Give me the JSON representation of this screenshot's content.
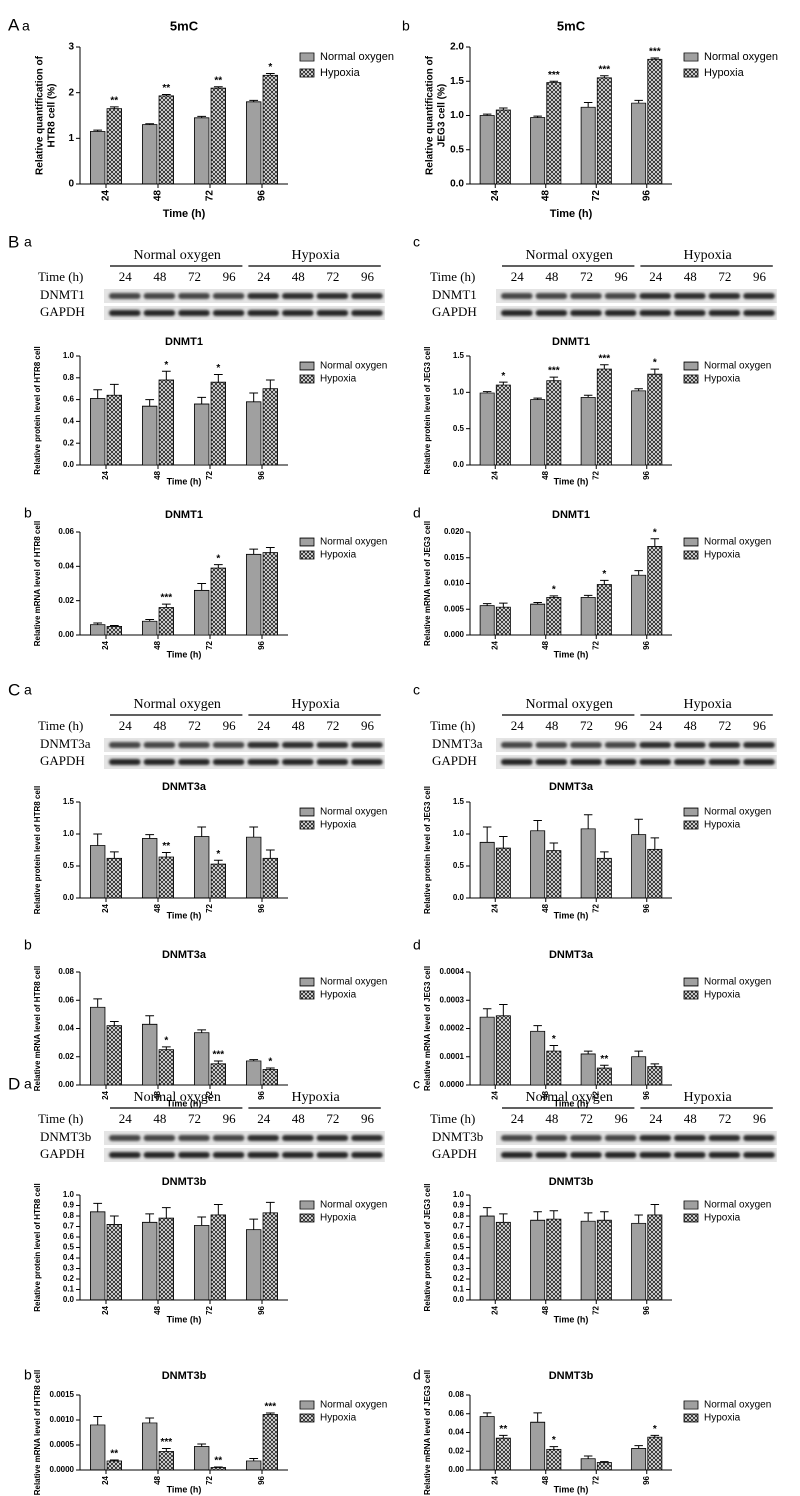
{
  "sections": [
    {
      "letter": "A",
      "panels": [
        "a",
        "b"
      ]
    },
    {
      "letter": "B",
      "panels": [
        "a",
        "c",
        "b",
        "d"
      ]
    },
    {
      "letter": "C",
      "panels": [
        "a",
        "c",
        "b",
        "d"
      ]
    },
    {
      "letter": "D",
      "panels": [
        "a",
        "c",
        "b",
        "d"
      ]
    }
  ],
  "blots": [
    {
      "groups": [
        "Normal oxygen",
        "Hypoxia"
      ],
      "time_label": "Time (h)",
      "times": [
        "24",
        "48",
        "72",
        "96",
        "24",
        "48",
        "72",
        "96"
      ],
      "rows": [
        "DNMT1",
        "GAPDH"
      ]
    },
    {
      "groups": [
        "Normal oxygen",
        "Hypoxia"
      ],
      "time_label": "Time (h)",
      "times": [
        "24",
        "48",
        "72",
        "96",
        "24",
        "48",
        "72",
        "96"
      ],
      "rows": [
        "DNMT1",
        "GAPDH"
      ]
    },
    {
      "groups": [
        "Normal oxygen",
        "Hypoxia"
      ],
      "time_label": "Time (h)",
      "times": [
        "24",
        "48",
        "72",
        "96",
        "24",
        "48",
        "72",
        "96"
      ],
      "rows": [
        "DNMT3a",
        "GAPDH"
      ]
    },
    {
      "groups": [
        "Normal oxygen",
        "Hypoxia"
      ],
      "time_label": "Time (h)",
      "times": [
        "24",
        "48",
        "72",
        "96",
        "24",
        "48",
        "72",
        "96"
      ],
      "rows": [
        "DNMT3a",
        "GAPDH"
      ]
    },
    {
      "groups": [
        "Normal oxygen",
        "Hypoxia"
      ],
      "time_label": "Time (h)",
      "times": [
        "24",
        "48",
        "72",
        "96",
        "24",
        "48",
        "72",
        "96"
      ],
      "rows": [
        "DNMT3b",
        "GAPDH"
      ]
    },
    {
      "groups": [
        "Normal oxygen",
        "Hypoxia"
      ],
      "time_label": "Time (h)",
      "times": [
        "24",
        "48",
        "72",
        "96",
        "24",
        "48",
        "72",
        "96"
      ],
      "rows": [
        "DNMT3b",
        "GAPDH"
      ]
    }
  ],
  "chart_data": [
    {
      "type": "bar",
      "title": "5mC",
      "ylabel": [
        "Relative quantification of",
        "HTR8 cell (%)"
      ],
      "xlabel": "Time (h)",
      "categories": [
        "24",
        "48",
        "72",
        "96"
      ],
      "ylim": [
        0,
        3
      ],
      "yticks": [
        0,
        1,
        2,
        3
      ],
      "series": [
        {
          "name": "Normal oxygen",
          "color": "#707070",
          "values": [
            1.15,
            1.3,
            1.45,
            1.8
          ],
          "errors": [
            0.03,
            0.02,
            0.03,
            0.03
          ]
        },
        {
          "name": "Hypoxia",
          "color": "#303030",
          "values": [
            1.65,
            1.93,
            2.1,
            2.38
          ],
          "errors": [
            0.04,
            0.03,
            0.03,
            0.04
          ]
        }
      ],
      "significance": [
        "**",
        "**",
        "**",
        "*"
      ]
    },
    {
      "type": "bar",
      "title": "5mC",
      "ylabel": [
        "Relative quantification of",
        "JEG3 cell (%)"
      ],
      "xlabel": "Time (h)",
      "categories": [
        "24",
        "48",
        "72",
        "96"
      ],
      "ylim": [
        0,
        2
      ],
      "yticks": [
        {
          "value": 0,
          "label": "0.0"
        },
        0.5,
        {
          "value": 1,
          "label": "1.0"
        },
        1.5,
        {
          "value": 2,
          "label": "2.0"
        }
      ],
      "series": [
        {
          "name": "Normal oxygen",
          "color": "#707070",
          "values": [
            1.0,
            0.97,
            1.12,
            1.18
          ],
          "errors": [
            0.02,
            0.02,
            0.07,
            0.04
          ]
        },
        {
          "name": "Hypoxia",
          "color": "#303030",
          "values": [
            1.08,
            1.48,
            1.55,
            1.82
          ],
          "errors": [
            0.03,
            0.02,
            0.03,
            0.02
          ]
        }
      ],
      "significance": [
        null,
        "***",
        "***",
        "***"
      ]
    },
    {
      "type": "bar",
      "title": "DNMT1",
      "ylabel": "Relative protein level of HTR8 cell",
      "xlabel": "Time (h)",
      "categories": [
        "24",
        "48",
        "72",
        "96"
      ],
      "ylim": [
        0,
        1
      ],
      "yticks": [
        {
          "value": 0,
          "label": "0.0"
        },
        0.2,
        0.4,
        0.6,
        0.8,
        {
          "value": 1,
          "label": "1.0"
        }
      ],
      "series": [
        {
          "name": "Normal oxygen",
          "color": "#707070",
          "values": [
            0.61,
            0.54,
            0.56,
            0.58
          ],
          "errors": [
            0.08,
            0.06,
            0.06,
            0.08
          ]
        },
        {
          "name": "Hypoxia",
          "color": "#303030",
          "values": [
            0.64,
            0.78,
            0.76,
            0.7
          ],
          "errors": [
            0.1,
            0.08,
            0.07,
            0.08
          ]
        }
      ],
      "significance": [
        null,
        "*",
        "*",
        null
      ]
    },
    {
      "type": "bar",
      "title": "DNMT1",
      "ylabel": "Relative protein level of JEG3 cell",
      "xlabel": "Time (h)",
      "categories": [
        "24",
        "48",
        "72",
        "96"
      ],
      "ylim": [
        0,
        1.5
      ],
      "yticks": [
        {
          "value": 0,
          "label": "0.0"
        },
        0.5,
        {
          "value": 1,
          "label": "1.0"
        },
        1.5
      ],
      "series": [
        {
          "name": "Normal oxygen",
          "color": "#707070",
          "values": [
            0.99,
            0.9,
            0.93,
            1.02
          ],
          "errors": [
            0.02,
            0.02,
            0.03,
            0.03
          ]
        },
        {
          "name": "Hypoxia",
          "color": "#303030",
          "values": [
            1.1,
            1.16,
            1.32,
            1.25
          ],
          "errors": [
            0.04,
            0.05,
            0.06,
            0.07
          ]
        }
      ],
      "significance": [
        "*",
        "***",
        "***",
        "*"
      ]
    },
    {
      "type": "bar",
      "title": "DNMT1",
      "ylabel": "Relative mRNA level of HTR8 cell",
      "xlabel": "Time (h)",
      "categories": [
        "24",
        "48",
        "72",
        "96"
      ],
      "ylim": [
        0,
        0.06
      ],
      "yticks": [
        {
          "value": 0,
          "label": "0.00"
        },
        0.02,
        0.04,
        0.06
      ],
      "series": [
        {
          "name": "Normal oxygen",
          "color": "#707070",
          "values": [
            0.006,
            0.008,
            0.026,
            0.047
          ],
          "errors": [
            0.001,
            0.001,
            0.004,
            0.003
          ]
        },
        {
          "name": "Hypoxia",
          "color": "#303030",
          "values": [
            0.005,
            0.016,
            0.039,
            0.048
          ],
          "errors": [
            0.0005,
            0.002,
            0.002,
            0.003
          ]
        }
      ],
      "significance": [
        null,
        "***",
        "*",
        null
      ]
    },
    {
      "type": "bar",
      "title": "DNMT1",
      "ylabel": "Relative mRNA level of JEG3 cell",
      "xlabel": "Time (h)",
      "categories": [
        "24",
        "48",
        "72",
        "96"
      ],
      "ylim": [
        0,
        0.02
      ],
      "yticks": [
        {
          "value": 0,
          "label": "0.000"
        },
        0.005,
        {
          "value": 0.01,
          "label": "0.010"
        },
        0.015,
        {
          "value": 0.02,
          "label": "0.020"
        }
      ],
      "series": [
        {
          "name": "Normal oxygen",
          "color": "#707070",
          "values": [
            0.0057,
            0.006,
            0.0073,
            0.0116
          ],
          "errors": [
            0.0004,
            0.0003,
            0.0004,
            0.0009
          ]
        },
        {
          "name": "Hypoxia",
          "color": "#303030",
          "values": [
            0.0054,
            0.0073,
            0.0098,
            0.0172
          ],
          "errors": [
            0.0008,
            0.0003,
            0.0008,
            0.0015
          ]
        }
      ],
      "significance": [
        null,
        "*",
        "*",
        "*"
      ]
    },
    {
      "type": "bar",
      "title": "DNMT3a",
      "ylabel": "Relative protein level of HTR8 cell",
      "xlabel": "Time (h)",
      "categories": [
        "24",
        "48",
        "72",
        "96"
      ],
      "ylim": [
        0,
        1.5
      ],
      "yticks": [
        {
          "value": 0,
          "label": "0.0"
        },
        0.5,
        {
          "value": 1,
          "label": "1.0"
        },
        1.5
      ],
      "series": [
        {
          "name": "Normal oxygen",
          "color": "#707070",
          "values": [
            0.82,
            0.93,
            0.96,
            0.95
          ],
          "errors": [
            0.18,
            0.06,
            0.15,
            0.16
          ]
        },
        {
          "name": "Hypoxia",
          "color": "#303030",
          "values": [
            0.62,
            0.64,
            0.53,
            0.62
          ],
          "errors": [
            0.1,
            0.07,
            0.06,
            0.13
          ]
        }
      ],
      "significance": [
        null,
        "**",
        "*",
        null
      ]
    },
    {
      "type": "bar",
      "title": "DNMT3a",
      "ylabel": "Relative protein level of JEG3 cell",
      "xlabel": "Time (h)",
      "categories": [
        "24",
        "48",
        "72",
        "96"
      ],
      "ylim": [
        0,
        1.5
      ],
      "yticks": [
        {
          "value": 0,
          "label": "0.0"
        },
        0.5,
        {
          "value": 1,
          "label": "1.0"
        },
        1.5
      ],
      "series": [
        {
          "name": "Normal oxygen",
          "color": "#707070",
          "values": [
            0.87,
            1.05,
            1.08,
            0.99
          ],
          "errors": [
            0.24,
            0.16,
            0.22,
            0.24
          ]
        },
        {
          "name": "Hypoxia",
          "color": "#303030",
          "values": [
            0.78,
            0.74,
            0.62,
            0.76
          ],
          "errors": [
            0.18,
            0.12,
            0.1,
            0.18
          ]
        }
      ],
      "significance": [
        null,
        null,
        null,
        null
      ]
    },
    {
      "type": "bar",
      "title": "DNMT3a",
      "ylabel": "Relative mRNA level of HTR8 cell",
      "xlabel": "Time (h)",
      "categories": [
        "24",
        "48",
        "72",
        "96"
      ],
      "ylim": [
        0,
        0.08
      ],
      "yticks": [
        {
          "value": 0,
          "label": "0.00"
        },
        0.02,
        0.04,
        0.06,
        0.08
      ],
      "series": [
        {
          "name": "Normal oxygen",
          "color": "#707070",
          "values": [
            0.055,
            0.043,
            0.037,
            0.017
          ],
          "errors": [
            0.006,
            0.006,
            0.002,
            0.001
          ]
        },
        {
          "name": "Hypoxia",
          "color": "#303030",
          "values": [
            0.042,
            0.025,
            0.015,
            0.011
          ],
          "errors": [
            0.003,
            0.002,
            0.002,
            0.001
          ]
        }
      ],
      "significance": [
        null,
        "*",
        "***",
        "*"
      ]
    },
    {
      "type": "bar",
      "title": "DNMT3a",
      "ylabel": "Relative mRNA level of JEG3 cell",
      "xlabel": "Time (h)",
      "categories": [
        "24",
        "48",
        "72",
        "96"
      ],
      "ylim": [
        0,
        0.0004
      ],
      "yticks": [
        {
          "value": 0,
          "label": "0.0000"
        },
        0.0001,
        0.0002,
        0.0003,
        0.0004
      ],
      "series": [
        {
          "name": "Normal oxygen",
          "color": "#707070",
          "values": [
            0.00024,
            0.00019,
            0.00011,
            0.0001
          ],
          "errors": [
            3e-05,
            2e-05,
            1e-05,
            2e-05
          ]
        },
        {
          "name": "Hypoxia",
          "color": "#303030",
          "values": [
            0.000245,
            0.00012,
            6e-05,
            6.5e-05
          ],
          "errors": [
            4e-05,
            2e-05,
            1e-05,
            1e-05
          ]
        }
      ],
      "significance": [
        null,
        "*",
        "**",
        null
      ]
    },
    {
      "type": "bar",
      "title": "DNMT3b",
      "ylabel": "Relative protein level of HTR8 cell",
      "xlabel": "Time (h)",
      "categories": [
        "24",
        "48",
        "72",
        "96"
      ],
      "ylim": [
        0,
        1
      ],
      "yticks": [
        {
          "value": 0,
          "label": "0.0"
        },
        0.1,
        0.2,
        0.3,
        0.4,
        0.5,
        0.6,
        0.7,
        0.8,
        0.9,
        {
          "value": 1,
          "label": "1.0"
        }
      ],
      "series": [
        {
          "name": "Normal oxygen",
          "color": "#707070",
          "values": [
            0.84,
            0.74,
            0.71,
            0.67
          ],
          "errors": [
            0.08,
            0.08,
            0.08,
            0.1
          ]
        },
        {
          "name": "Hypoxia",
          "color": "#303030",
          "values": [
            0.72,
            0.78,
            0.81,
            0.83
          ],
          "errors": [
            0.08,
            0.1,
            0.1,
            0.1
          ]
        }
      ],
      "significance": [
        null,
        null,
        null,
        null
      ]
    },
    {
      "type": "bar",
      "title": "DNMT3b",
      "ylabel": "Relative protein level of JEG3 cell",
      "xlabel": "Time (h)",
      "categories": [
        "24",
        "48",
        "72",
        "96"
      ],
      "ylim": [
        0,
        1
      ],
      "yticks": [
        {
          "value": 0,
          "label": "0.0"
        },
        0.1,
        0.2,
        0.3,
        0.4,
        0.5,
        0.6,
        0.7,
        0.8,
        0.9,
        {
          "value": 1,
          "label": "1.0"
        }
      ],
      "series": [
        {
          "name": "Normal oxygen",
          "color": "#707070",
          "values": [
            0.8,
            0.76,
            0.75,
            0.73
          ],
          "errors": [
            0.08,
            0.08,
            0.08,
            0.08
          ]
        },
        {
          "name": "Hypoxia",
          "color": "#303030",
          "values": [
            0.74,
            0.77,
            0.76,
            0.81
          ],
          "errors": [
            0.08,
            0.08,
            0.08,
            0.1
          ]
        }
      ],
      "significance": [
        null,
        null,
        null,
        null
      ]
    },
    {
      "type": "bar",
      "title": "DNMT3b",
      "ylabel": "Relative mRNA level of HTR8 cell",
      "xlabel": "Time (h)",
      "categories": [
        "24",
        "48",
        "72",
        "96"
      ],
      "ylim": [
        0,
        0.0015
      ],
      "yticks": [
        {
          "value": 0,
          "label": "0.0000"
        },
        0.0005,
        {
          "value": 0.001,
          "label": "0.0010"
        },
        0.0015
      ],
      "series": [
        {
          "name": "Normal oxygen",
          "color": "#707070",
          "values": [
            0.0009,
            0.00094,
            0.00047,
            0.00018
          ],
          "errors": [
            0.00017,
            0.0001,
            5e-05,
            5e-05
          ]
        },
        {
          "name": "Hypoxia",
          "color": "#303030",
          "values": [
            0.00018,
            0.00037,
            5e-05,
            0.00111
          ],
          "errors": [
            2e-05,
            6e-05,
            1e-05,
            3e-05
          ]
        }
      ],
      "significance": [
        "**",
        "***",
        "**",
        "***"
      ]
    },
    {
      "type": "bar",
      "title": "DNMT3b",
      "ylabel": "Relative mRNA level of JEG3 cell",
      "xlabel": "Time (h)",
      "categories": [
        "24",
        "48",
        "72",
        "96"
      ],
      "ylim": [
        0,
        0.08
      ],
      "yticks": [
        {
          "value": 0,
          "label": "0.00"
        },
        0.02,
        0.04,
        0.06,
        0.08
      ],
      "series": [
        {
          "name": "Normal oxygen",
          "color": "#707070",
          "values": [
            0.057,
            0.051,
            0.012,
            0.023
          ],
          "errors": [
            0.004,
            0.01,
            0.003,
            0.003
          ]
        },
        {
          "name": "Hypoxia",
          "color": "#303030",
          "values": [
            0.034,
            0.022,
            0.008,
            0.035
          ],
          "errors": [
            0.003,
            0.003,
            0.001,
            0.002
          ]
        }
      ],
      "significance": [
        "**",
        "*",
        null,
        "*"
      ]
    }
  ]
}
